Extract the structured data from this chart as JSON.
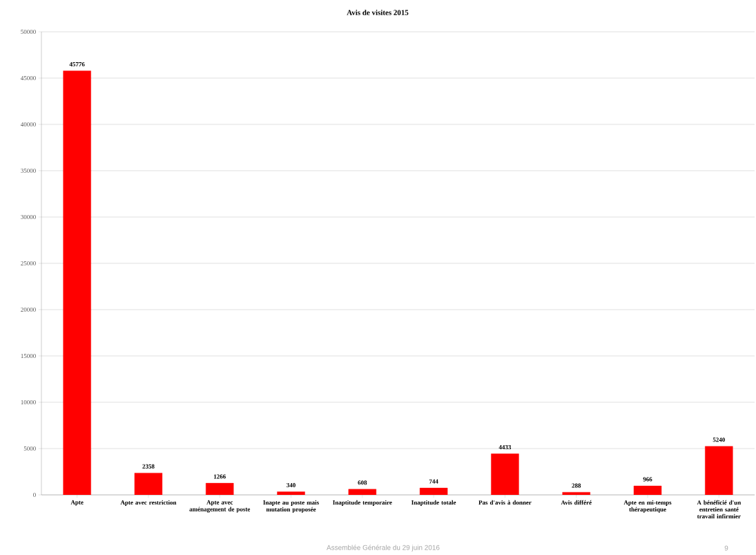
{
  "chart_data": {
    "type": "bar",
    "title": "Avis de visites  2015",
    "categories": [
      "Apte",
      "Apte avec restriction",
      "Apte avec aménagement de poste",
      "Inapte au poste mais mutation proposée",
      "Inaptitude temporaire",
      "Inaptitude totale",
      "Pas d'avis à donner",
      "Avis différé",
      "Apte en mi-temps thérapeutique",
      "A bénéficié d'un entretien santé travail infirmier"
    ],
    "values": [
      45776,
      2358,
      1266,
      340,
      608,
      744,
      4433,
      288,
      966,
      5240
    ],
    "color": "#ff0000",
    "ylim": [
      0,
      50000
    ],
    "yticks": [
      0,
      5000,
      10000,
      15000,
      20000,
      25000,
      30000,
      35000,
      40000,
      45000,
      50000
    ],
    "grid": "y",
    "data_labels": true,
    "annotations": [
      "Assemblée Générale du 29 juin 2016",
      "9"
    ]
  }
}
